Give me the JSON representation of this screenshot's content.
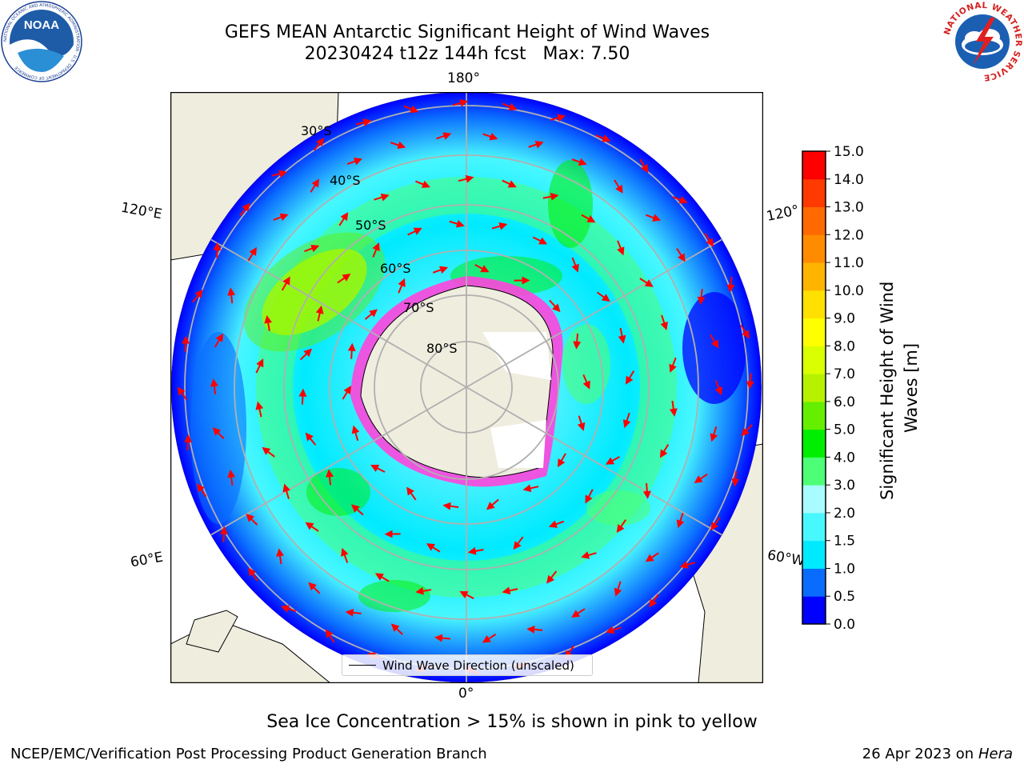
{
  "header": {
    "title_line1": "GEFS MEAN Antarctic Significant Height of Wind Waves",
    "title_line2": "20230424 t12z 144h fcst   Max: 7.50"
  },
  "logos": {
    "noaa": "NOAA",
    "noaa_ring": "NATIONAL OCEANIC AND ATMOSPHERIC ADMINISTRATION · U.S. DEPARTMENT OF COMMERCE",
    "nws_ring": "NATIONAL WEATHER SERVICE"
  },
  "map": {
    "longitude_labels": [
      "180°",
      "120°E",
      "120°",
      "60°E",
      "60°W",
      "0°"
    ],
    "latitude_labels": [
      "30°S",
      "40°S",
      "50°S",
      "60°S",
      "70°S",
      "80°S"
    ],
    "legend_label": "Wind Wave Direction (unscaled)",
    "arrow_color": "#ff0000"
  },
  "colorbar": {
    "label_line1": "Significant Height of Wind",
    "label_line2": "Waves [m]",
    "ticks": [
      "0.0",
      "0.5",
      "1.0",
      "1.5",
      "2.0",
      "3.0",
      "4.0",
      "5.0",
      "6.0",
      "7.0",
      "8.0",
      "9.0",
      "10.0",
      "11.0",
      "12.0",
      "13.0",
      "14.0",
      "15.0"
    ],
    "colors": [
      "#0000ff",
      "#0a6cff",
      "#00eaff",
      "#48f7ff",
      "#a8fbff",
      "#4dff77",
      "#00ee00",
      "#66ee00",
      "#b6f200",
      "#d9ff00",
      "#ffff00",
      "#ffe000",
      "#ffb400",
      "#ff8c00",
      "#ff6a00",
      "#ff3a00",
      "#ff0000"
    ]
  },
  "footer": {
    "sea_ice_note": "Sea Ice Concentration > 15% is shown in pink to yellow",
    "branch": "NCEP/EMC/Verification Post Processing Product Generation Branch",
    "date": "26 Apr 2023 on ",
    "host": "Hera"
  }
}
